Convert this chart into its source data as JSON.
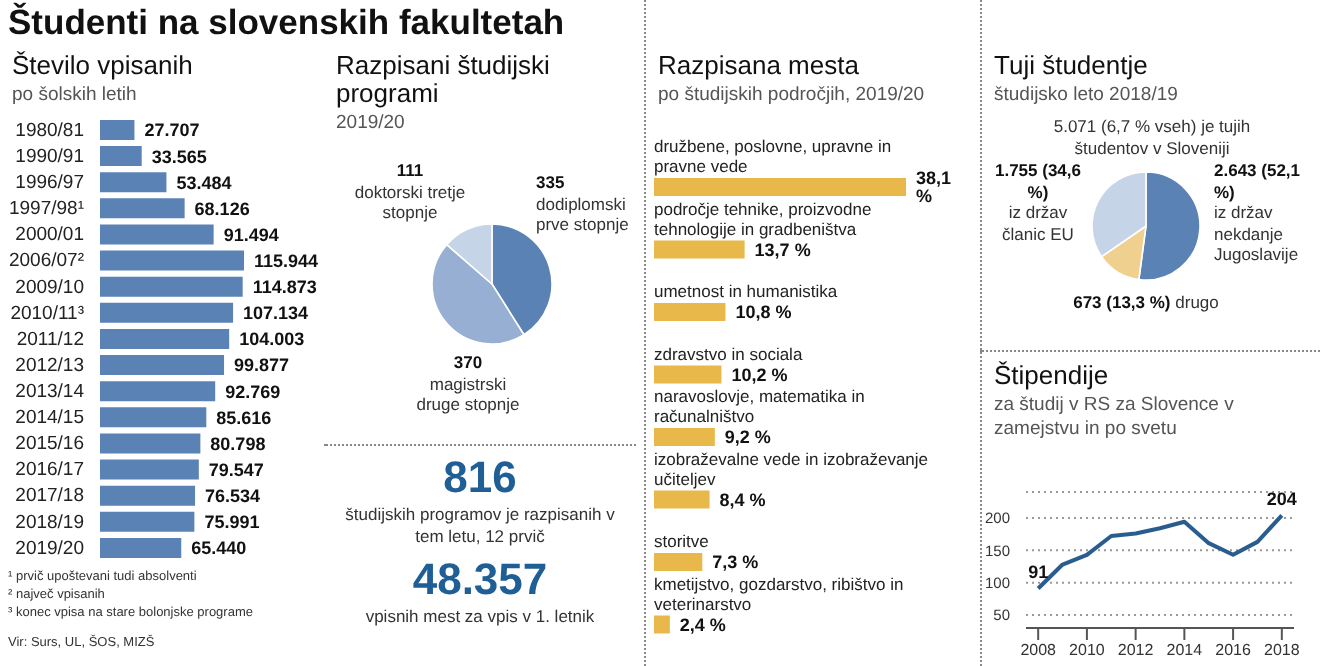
{
  "chart_data": [
    {
      "type": "bar",
      "orientation": "horizontal",
      "title": "Število vpisanih",
      "subtitle": "po šolskih letih",
      "categories": [
        "1980/81",
        "1990/91",
        "1996/97",
        "1997/98¹",
        "2000/01",
        "2006/07²",
        "2009/10",
        "2010/11³",
        "2011/12",
        "2012/13",
        "2013/14",
        "2014/15",
        "2015/16",
        "2016/17",
        "2017/18",
        "2018/19",
        "2019/20"
      ],
      "color": "#5b82b5",
      "values": [
        27707,
        33565,
        53484,
        68126,
        91494,
        115944,
        114873,
        107134,
        104003,
        99877,
        92769,
        85616,
        80798,
        79547,
        76534,
        75991,
        65440
      ],
      "value_labels": [
        "27.707",
        "33.565",
        "53.484",
        "68.126",
        "91.494",
        "115.944",
        "114.873",
        "107.134",
        "104.003",
        "99.877",
        "92.769",
        "85.616",
        "80.798",
        "79.547",
        "76.534",
        "75.991",
        "65.440"
      ],
      "annotations": [
        "Študenti na slovenskih fakultetah",
        "¹ prvič upoštevani tudi absolventi",
        "² največ vpisanih",
        "³ konec vpisa na stare bolonjske programe",
        "Vir: Surs, UL, ŠOS, MIZŠ"
      ]
    },
    {
      "type": "pie",
      "title": "Razpisani študijski programi",
      "subtitle": "2019/20",
      "categories": [
        "dodiplomski prve stopnje",
        "magistrski druge stopnje",
        "doktorski tretje stopnje"
      ],
      "values": [
        335,
        370,
        111
      ],
      "colors": [
        "#5b82b5",
        "#97afd2",
        "#c6d4e8"
      ],
      "data_labels": true,
      "annotations": [
        "816",
        "študijskih programov je razpisanih v tem letu, 12 prvič",
        "48.357",
        "vpisnih mest za vpis v 1. letnik"
      ]
    },
    {
      "type": "bar",
      "orientation": "horizontal",
      "title": "Razpisana mesta",
      "subtitle": "po študijskih področjih, 2019/20",
      "categories": [
        "družbene, poslovne, upravne in pravne vede",
        "področje tehnike, proizvodne tehnologije in gradbeništva",
        "umetnost in humanistika",
        "zdravstvo in sociala",
        "naravoslovje, matematika in računalništvo",
        "izobraževalne vede in izobraževanje učiteljev",
        "storitve",
        "kmetijstvo, gozdarstvo, ribištvo in veterinarstvo"
      ],
      "color": "#e8b84a",
      "values": [
        38.1,
        13.7,
        10.8,
        10.2,
        9.2,
        8.4,
        7.3,
        2.4
      ],
      "value_labels": [
        "38,1 %",
        "13,7 %",
        "10,8 %",
        "10,2 %",
        "9,2 %",
        "8,4 %",
        "7,3 %",
        "2,4 %"
      ]
    },
    {
      "type": "pie",
      "title": "Tuji študentje",
      "subtitle": "študijsko leto 2018/19",
      "categories": [
        "iz držav nekdanje Jugoslavije",
        "drugo",
        "iz držav članic EU"
      ],
      "values": [
        2643,
        673,
        1755
      ],
      "colors": [
        "#5b82b5",
        "#f0d08f",
        "#c6d4e8"
      ],
      "value_labels": [
        "2.643 (52,1 %)",
        "673 (13,3 %)",
        "1.755 (34,6 %)"
      ],
      "annotations": [
        "5.071 (6,7 % vseh) je tujih študentov v Sloveniji"
      ]
    },
    {
      "type": "line",
      "title": "Štipendije",
      "subtitle": "za študij v RS za Slovence v zamejstvu in po svetu",
      "color": "#2a5d8f",
      "grid": "y",
      "x": [
        2008,
        2009,
        2010,
        2011,
        2012,
        2013,
        2014,
        2015,
        2016,
        2017,
        2018
      ],
      "values": [
        91,
        128,
        143,
        172,
        176,
        184,
        194,
        161,
        143,
        163,
        204
      ],
      "value_labels": [
        "91",
        null,
        null,
        null,
        null,
        null,
        null,
        null,
        null,
        null,
        "204"
      ],
      "xlim": [
        2007.5,
        2018.5
      ],
      "xticks": [
        2008,
        2010,
        2012,
        2014,
        2016,
        2018
      ],
      "ylim": [
        30,
        240
      ],
      "yticks": [
        50,
        100,
        150,
        200
      ]
    }
  ]
}
